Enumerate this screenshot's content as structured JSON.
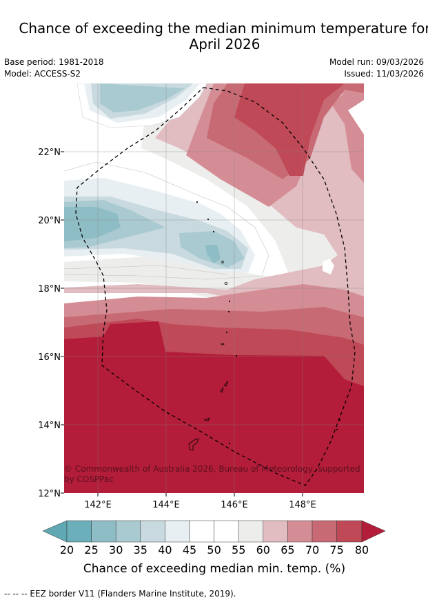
{
  "title": {
    "line1": "Chance of exceeding the median minimum temperature for",
    "line2": "April 2026"
  },
  "meta": {
    "base_period": "Base period: 1981-2018",
    "model": "Model: ACCESS-S2",
    "model_run": "Model run: 09/03/2026",
    "issued": "Issued: 11/03/2026"
  },
  "map": {
    "lat_labels": [
      "22°N",
      "20°N",
      "18°N",
      "16°N",
      "14°N",
      "12°N"
    ],
    "lon_labels": [
      "142°E",
      "144°E",
      "146°E",
      "148°E"
    ],
    "copyright": "© Commonwealth of Australia 2026, Bureau of Meteorology, supported by COSPPac",
    "colors": {
      "c20": "#5fa8b4",
      "c25": "#8fbdc6",
      "c30": "#a9cad0",
      "c35": "#c8dadf",
      "c40": "#e7eff2",
      "c45": "#ffffff",
      "c50": "#ffffff",
      "c55": "#ededeb",
      "c60": "#e1bcc1",
      "c65": "#d58d95",
      "c70": "#c76a74",
      "c75": "#bf4957",
      "c80": "#b31d39"
    }
  },
  "colorbar": {
    "ticks": [
      "20",
      "25",
      "30",
      "35",
      "40",
      "45",
      "50",
      "55",
      "60",
      "65",
      "70",
      "75",
      "80"
    ],
    "label": "Chance of exceeding median min. temp. (%)"
  },
  "legend": {
    "eez": "--  --  -- EEZ border V11 (Flanders Marine Institute, 2019)."
  }
}
